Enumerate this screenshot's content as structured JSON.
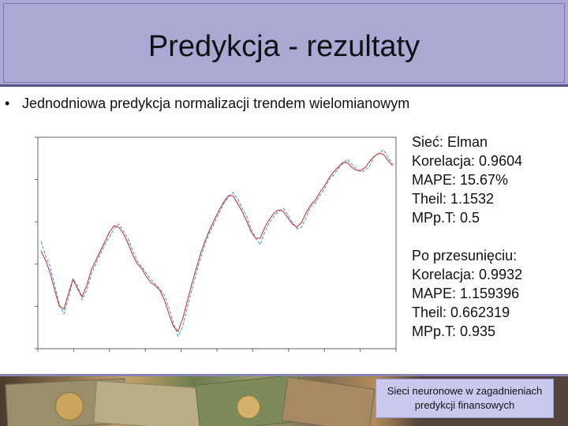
{
  "slide": {
    "title": "Predykcja - rezultaty",
    "bullet": "Jednodniowa predykcja normalizacji trendem wielomianowym",
    "bullet_symbol": "•"
  },
  "stats": {
    "block1": [
      "Sieć: Elman",
      "Korelacja: 0.9604",
      "MAPE: 15.67%",
      "Theil: 1.1532",
      "MPp.T: 0.5"
    ],
    "block2": [
      "Po przesunięciu:",
      "Korelacja: 0.9932",
      "MAPE: 1.159396",
      "Theil: 0.662319",
      "MPp.T: 0.935"
    ]
  },
  "footer": {
    "text_line1": "Sieci neuronowe w zagadnieniach",
    "text_line2": "predykcji finansowych"
  },
  "chart_data": {
    "type": "line",
    "title": "",
    "xlabel": "",
    "ylabel": "",
    "series": [
      {
        "name": "",
        "color": "#3399cc",
        "values": [
          0.64,
          0.55,
          0.48,
          0.36,
          0.24,
          0.18,
          0.28,
          0.4,
          0.36,
          0.27,
          0.33,
          0.43,
          0.5,
          0.56,
          0.62,
          0.67,
          0.72,
          0.75,
          0.71,
          0.66,
          0.59,
          0.52,
          0.48,
          0.44,
          0.4,
          0.37,
          0.34,
          0.3,
          0.22,
          0.12,
          0.04,
          0.1,
          0.22,
          0.33,
          0.44,
          0.54,
          0.63,
          0.7,
          0.76,
          0.82,
          0.88,
          0.92,
          0.95,
          0.91,
          0.85,
          0.8,
          0.72,
          0.66,
          0.62,
          0.7,
          0.76,
          0.8,
          0.83,
          0.85,
          0.81,
          0.76,
          0.72,
          0.73,
          0.79,
          0.86,
          0.88,
          0.93,
          0.97,
          1.03,
          1.06,
          1.1,
          1.13,
          1.16,
          1.13,
          1.1,
          1.08,
          1.09,
          1.12,
          1.18,
          1.2,
          1.22,
          1.17,
          1.13
        ]
      },
      {
        "name": "",
        "color": "#cc2222",
        "values": [
          0.58,
          0.52,
          0.44,
          0.33,
          0.23,
          0.21,
          0.31,
          0.4,
          0.34,
          0.29,
          0.36,
          0.46,
          0.52,
          0.58,
          0.64,
          0.7,
          0.74,
          0.73,
          0.69,
          0.63,
          0.56,
          0.5,
          0.47,
          0.42,
          0.38,
          0.36,
          0.33,
          0.27,
          0.18,
          0.1,
          0.07,
          0.15,
          0.26,
          0.37,
          0.47,
          0.57,
          0.65,
          0.72,
          0.78,
          0.84,
          0.89,
          0.93,
          0.93,
          0.88,
          0.83,
          0.77,
          0.7,
          0.66,
          0.66,
          0.73,
          0.78,
          0.82,
          0.84,
          0.83,
          0.79,
          0.75,
          0.73,
          0.76,
          0.82,
          0.87,
          0.9,
          0.95,
          0.99,
          1.04,
          1.08,
          1.11,
          1.14,
          1.14,
          1.11,
          1.09,
          1.09,
          1.11,
          1.15,
          1.18,
          1.2,
          1.19,
          1.15,
          1.12
        ]
      }
    ]
  }
}
